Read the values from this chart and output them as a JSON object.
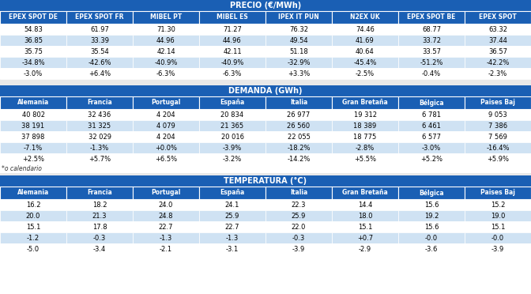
{
  "precio_title": "PRECIO (€/MWh)",
  "precio_headers": [
    "EPEX SPOT DE",
    "EPEX SPOT FR",
    "MIBEL PT",
    "MIBEL ES",
    "IPEX IT PUN",
    "N2EX UK",
    "EPEX SPOT BE",
    "EPEX SPOT"
  ],
  "precio_rows": [
    [
      "54.83",
      "61.97",
      "71.30",
      "71.27",
      "76.32",
      "74.46",
      "68.77",
      "63.32"
    ],
    [
      "36.85",
      "33.39",
      "44.96",
      "44.96",
      "49.54",
      "41.69",
      "33.72",
      "37.44"
    ],
    [
      "35.75",
      "35.54",
      "42.14",
      "42.11",
      "51.18",
      "40.64",
      "33.57",
      "36.57"
    ],
    [
      "-34.8%",
      "-42.6%",
      "-40.9%",
      "-40.9%",
      "-32.9%",
      "-45.4%",
      "-51.2%",
      "-42.2%"
    ],
    [
      "-3.0%",
      "+6.4%",
      "-6.3%",
      "-6.3%",
      "+3.3%",
      "-2.5%",
      "-0.4%",
      "-2.3%"
    ]
  ],
  "demanda_title": "DEMANDA (GWh)",
  "demanda_headers": [
    "Alemania",
    "Francia",
    "Portugal",
    "España",
    "Italia",
    "Gran Bretaña",
    "Bélgica",
    "Paises Baj"
  ],
  "demanda_rows": [
    [
      "40 802",
      "32 436",
      "4 204",
      "20 834",
      "26 977",
      "19 312",
      "6 781",
      "9 053"
    ],
    [
      "38 191",
      "31 325",
      "4 079",
      "21 365",
      "26 560",
      "18 389",
      "6 461",
      "7 386"
    ],
    [
      "37 898",
      "32 029",
      "4 204",
      "20 016",
      "22 055",
      "18 775",
      "6 577",
      "7 569"
    ],
    [
      "-7.1%",
      "-1.3%",
      "+0.0%",
      "-3.9%",
      "-18.2%",
      "-2.8%",
      "-3.0%",
      "-16.4%"
    ],
    [
      "+2.5%",
      "+5.7%",
      "+6.5%",
      "-3.2%",
      "-14.2%",
      "+5.5%",
      "+5.2%",
      "+5.9%"
    ]
  ],
  "demanda_footnote": "*o calendario",
  "temperatura_title": "TEMPERATURA (°C)",
  "temperatura_headers": [
    "Alemania",
    "Francia",
    "Portugal",
    "España",
    "Italia",
    "Gran Bretaña",
    "Bélgica",
    "Paises Baj"
  ],
  "temperatura_rows": [
    [
      "16.2",
      "18.2",
      "24.0",
      "24.1",
      "22.3",
      "14.4",
      "15.6",
      "15.2"
    ],
    [
      "20.0",
      "21.3",
      "24.8",
      "25.9",
      "25.9",
      "18.0",
      "19.2",
      "19.0"
    ],
    [
      "15.1",
      "17.8",
      "22.7",
      "22.7",
      "22.0",
      "15.1",
      "15.6",
      "15.1"
    ],
    [
      "-1.2",
      "-0.3",
      "-1.3",
      "-1.3",
      "-0.3",
      "+0.7",
      "-0.0",
      "-0.0"
    ],
    [
      "-5.0",
      "-3.4",
      "-2.1",
      "-3.1",
      "-3.9",
      "-2.9",
      "-3.6",
      "-3.9"
    ]
  ],
  "header_bg": "#1a5fb4",
  "header_text": "#FFFFFF",
  "title_bg": "#1a5fb4",
  "title_text": "#FFFFFF",
  "row_bg_white": "#FFFFFF",
  "row_bg_blue": "#cfe2f3",
  "data_text": "#000000",
  "border_color": "#FFFFFF",
  "fig_bg": "#FFFFFF",
  "gap_bg": "#e8e8e8"
}
